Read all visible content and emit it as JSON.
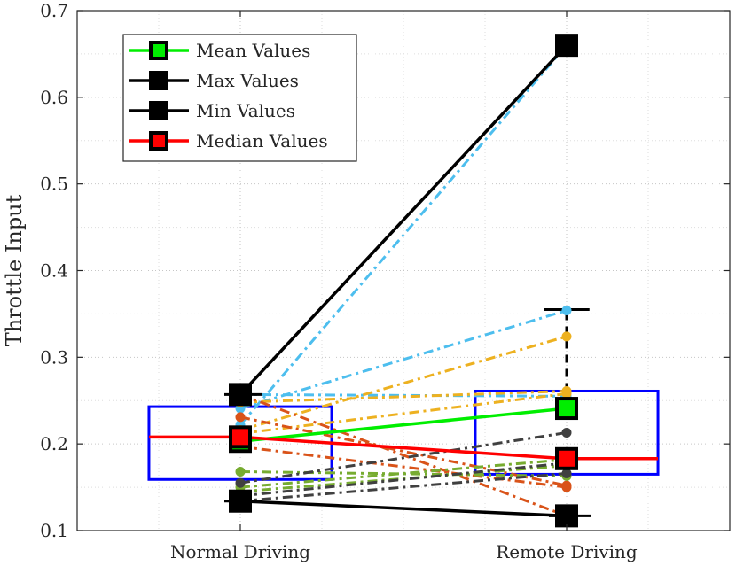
{
  "chart_data": {
    "type": "line",
    "title": "",
    "xlabel": "",
    "ylabel": "Throttle Input",
    "ylim": [
      0.1,
      0.7
    ],
    "yticks": [
      "0.1",
      "0.2",
      "0.3",
      "0.4",
      "0.5",
      "0.6",
      "0.7"
    ],
    "xlim": [
      0.5,
      2.5
    ],
    "categories": [
      "Normal Driving",
      "Remote Driving"
    ],
    "grid": "major-and-minor-dotted",
    "legend_position": "top-left",
    "legend": [
      {
        "label": "Mean Values",
        "line_color": "#00ee00",
        "marker_color": "#00ee00"
      },
      {
        "label": "Max Values",
        "line_color": "#000000",
        "marker_color": "#000000"
      },
      {
        "label": "Min Values",
        "line_color": "#000000",
        "marker_color": "#000000"
      },
      {
        "label": "Median Values",
        "line_color": "#ff0000",
        "marker_color": "#ff0000"
      }
    ],
    "summary": {
      "mean": [
        0.203,
        0.241
      ],
      "max": [
        0.257,
        0.66
      ],
      "min": [
        0.134,
        0.117
      ],
      "median": [
        0.208,
        0.183
      ]
    },
    "boxes": [
      {
        "category": "Normal Driving",
        "q1": 0.159,
        "q3": 0.243
      },
      {
        "category": "Remote Driving",
        "q1": 0.165,
        "q3": 0.261
      }
    ],
    "whiskers": [
      {
        "category": "Remote Driving",
        "low": 0.261,
        "high": 0.355
      }
    ],
    "participants": [
      {
        "color": "#4dbeee",
        "values": [
          0.241,
          0.354
        ]
      },
      {
        "color": "#4dbeee",
        "values": [
          0.222,
          0.66
        ]
      },
      {
        "color": "#4dbeee",
        "values": [
          0.257,
          0.255
        ]
      },
      {
        "color": "#edb120",
        "values": [
          0.216,
          0.324
        ]
      },
      {
        "color": "#edb120",
        "values": [
          0.248,
          0.261
        ]
      },
      {
        "color": "#edb120",
        "values": [
          0.212,
          0.258
        ]
      },
      {
        "color": "#d95319",
        "values": [
          0.257,
          0.117
        ]
      },
      {
        "color": "#d95319",
        "values": [
          0.231,
          0.152
        ]
      },
      {
        "color": "#d95319",
        "values": [
          0.197,
          0.15
        ]
      },
      {
        "color": "#77ac30",
        "values": [
          0.168,
          0.163
        ]
      },
      {
        "color": "#77ac30",
        "values": [
          0.15,
          0.182
        ]
      },
      {
        "color": "#77ac30",
        "values": [
          0.145,
          0.175
        ]
      },
      {
        "color": "#404040",
        "values": [
          0.155,
          0.213
        ]
      },
      {
        "color": "#404040",
        "values": [
          0.14,
          0.178
        ]
      },
      {
        "color": "#404040",
        "values": [
          0.134,
          0.166
        ]
      }
    ]
  }
}
